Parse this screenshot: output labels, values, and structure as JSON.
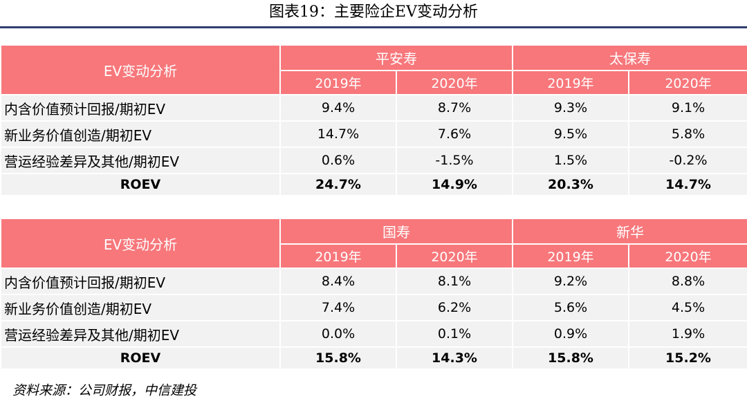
{
  "title": "图表19：主要险企EV变动分析",
  "source": "资料来源：公司财报，中信建投",
  "tables": [
    {
      "header_label": "EV变动分析",
      "companies": [
        "平安寿",
        "太保寿"
      ],
      "years": [
        "2019年",
        "2020年",
        "2019年",
        "2020年"
      ],
      "rows": [
        {
          "label": "内含价值预计回报/期初EV",
          "values": [
            "9.4%",
            "8.7%",
            "9.3%",
            "9.1%"
          ]
        },
        {
          "label": "新业务价值创造/期初EV",
          "values": [
            "14.7%",
            "7.6%",
            "9.5%",
            "5.8%"
          ]
        },
        {
          "label": "营运经验差异及其他/期初EV",
          "values": [
            "0.6%",
            "-1.5%",
            "1.5%",
            "-0.2%"
          ]
        }
      ],
      "total": {
        "label": "ROEV",
        "values": [
          "24.7%",
          "14.9%",
          "20.3%",
          "14.7%"
        ]
      }
    },
    {
      "header_label": "EV变动分析",
      "companies": [
        "国寿",
        "新华"
      ],
      "years": [
        "2019年",
        "2020年",
        "2019年",
        "2020年"
      ],
      "rows": [
        {
          "label": "内含价值预计回报/期初EV",
          "values": [
            "8.4%",
            "8.1%",
            "9.2%",
            "8.8%"
          ]
        },
        {
          "label": "新业务价值创造/期初EV",
          "values": [
            "7.4%",
            "6.2%",
            "5.6%",
            "4.5%"
          ]
        },
        {
          "label": "营运经验差异及其他/期初EV",
          "values": [
            "0.0%",
            "0.1%",
            "0.9%",
            "1.9%"
          ]
        }
      ],
      "total": {
        "label": "ROEV",
        "values": [
          "15.8%",
          "14.3%",
          "15.8%",
          "15.2%"
        ]
      }
    }
  ]
}
